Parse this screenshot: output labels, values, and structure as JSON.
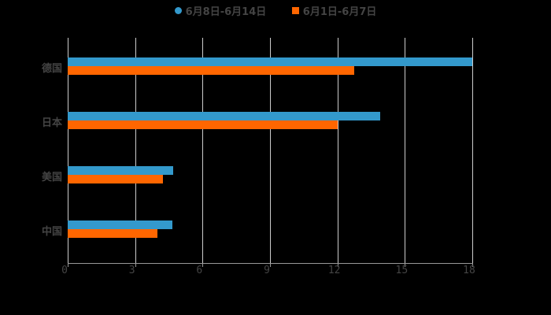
{
  "chart_data": {
    "type": "bar",
    "orientation": "horizontal",
    "categories": [
      "德国",
      "日本",
      "美国",
      "中国"
    ],
    "series": [
      {
        "name": "6月8日-6月14日",
        "color": "#3399cc",
        "values": [
          18.0,
          13.9,
          4.7,
          4.65
        ]
      },
      {
        "name": "6月1日-6月7日",
        "color": "#ff6600",
        "values": [
          12.75,
          12.0,
          4.25,
          4.0
        ]
      }
    ],
    "title": "",
    "xlabel": "",
    "ylabel": "",
    "xlim": [
      0,
      18
    ],
    "xticks": [
      "0",
      "3",
      "6",
      "9",
      "12",
      "15",
      "18"
    ],
    "grid": true,
    "legend_position": "top"
  },
  "legend": {
    "series_a": "6月8日-6月14日",
    "series_b": "6月1日-6月7日"
  }
}
